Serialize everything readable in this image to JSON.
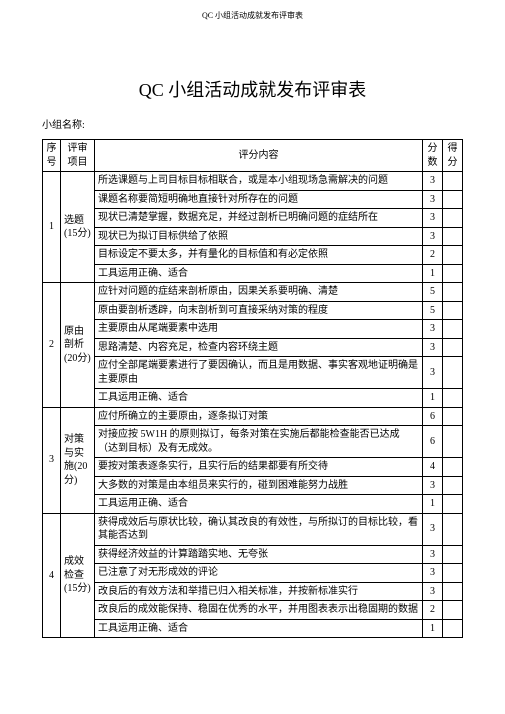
{
  "header_text": "QC 小组活动成就发布评审表",
  "title": "QC 小组活动成就发布评审表",
  "group_label": "小组名称:",
  "columns": {
    "seq": "序号",
    "category": "评审项目",
    "content": "评分内容",
    "score": "分数",
    "got": "得分"
  },
  "sections": [
    {
      "seq": "1",
      "category": "选题(15分)",
      "rows": [
        {
          "content": "所选课题与上司目标目标相联合，或是本小组现场急需解决的问题",
          "score": "3"
        },
        {
          "content": "课题名称要简短明确地直接针对所存在的问题",
          "score": "3"
        },
        {
          "content": "现状已清楚掌握，数据充足，并经过剖析已明确问题的症结所在",
          "score": "3"
        },
        {
          "content": "现状已为拟订目标供给了依照",
          "score": "3"
        },
        {
          "content": "目标设定不要太多，并有量化的目标值和有必定依照",
          "score": "2"
        },
        {
          "content": "工具运用正确、适合",
          "score": "1"
        }
      ]
    },
    {
      "seq": "2",
      "category": "原由剖析(20分)",
      "rows": [
        {
          "content": "应针对问题的症结来剖析原由，因果关系要明确、清楚",
          "score": "5"
        },
        {
          "content": "原由要剖析透辟，向末剖析到可直接采纳对策的程度",
          "score": "5"
        },
        {
          "content": "主要原由从尾端要素中选用",
          "score": "3"
        },
        {
          "content": "思路清楚、内容充足，检查内容环绕主题",
          "score": "3"
        },
        {
          "content": "应付全部尾端要素进行了要因确认，而且是用数据、事实客观地证明确是主要原由",
          "score": "3"
        },
        {
          "content": "工具运用正确、适合",
          "score": "1"
        }
      ]
    },
    {
      "seq": "3",
      "category": "对策与实施(20分)",
      "rows": [
        {
          "content": "应付所确立的主要原由，逐条拟订对策",
          "score": "6"
        },
        {
          "content": "对接应按 5W1H 的原则拟订，每条对策在实施后都能检查能否已达成（达到目标）及有无成效。",
          "score": "6"
        },
        {
          "content": "要按对策表逐条实行，且实行后的结果都要有所交待",
          "score": "4"
        },
        {
          "content": "大多数的对策是由本组员来实行的，碰到困难能努力战胜",
          "score": "3"
        },
        {
          "content": "工具运用正确、适合",
          "score": "1"
        }
      ]
    },
    {
      "seq": "4",
      "category": "成效检查(15分)",
      "rows": [
        {
          "content": "获得成效后与原状比较，确认其改良的有效性，与所拟订的目标比较，看其能否达到",
          "score": "3"
        },
        {
          "content": "获得经济效益的计算踏踏实地、无夸张",
          "score": "3"
        },
        {
          "content": "已注意了对无形成效的评论",
          "score": "3"
        },
        {
          "content": "改良后的有效方法和举措已归入相关标准，并按新标准实行",
          "score": "3"
        },
        {
          "content": "改良后的成效能保持、稳固在优秀的水平，并用图表表示出稳固期的数据",
          "score": "2"
        },
        {
          "content": "工具运用正确、适合",
          "score": "1"
        }
      ]
    }
  ]
}
